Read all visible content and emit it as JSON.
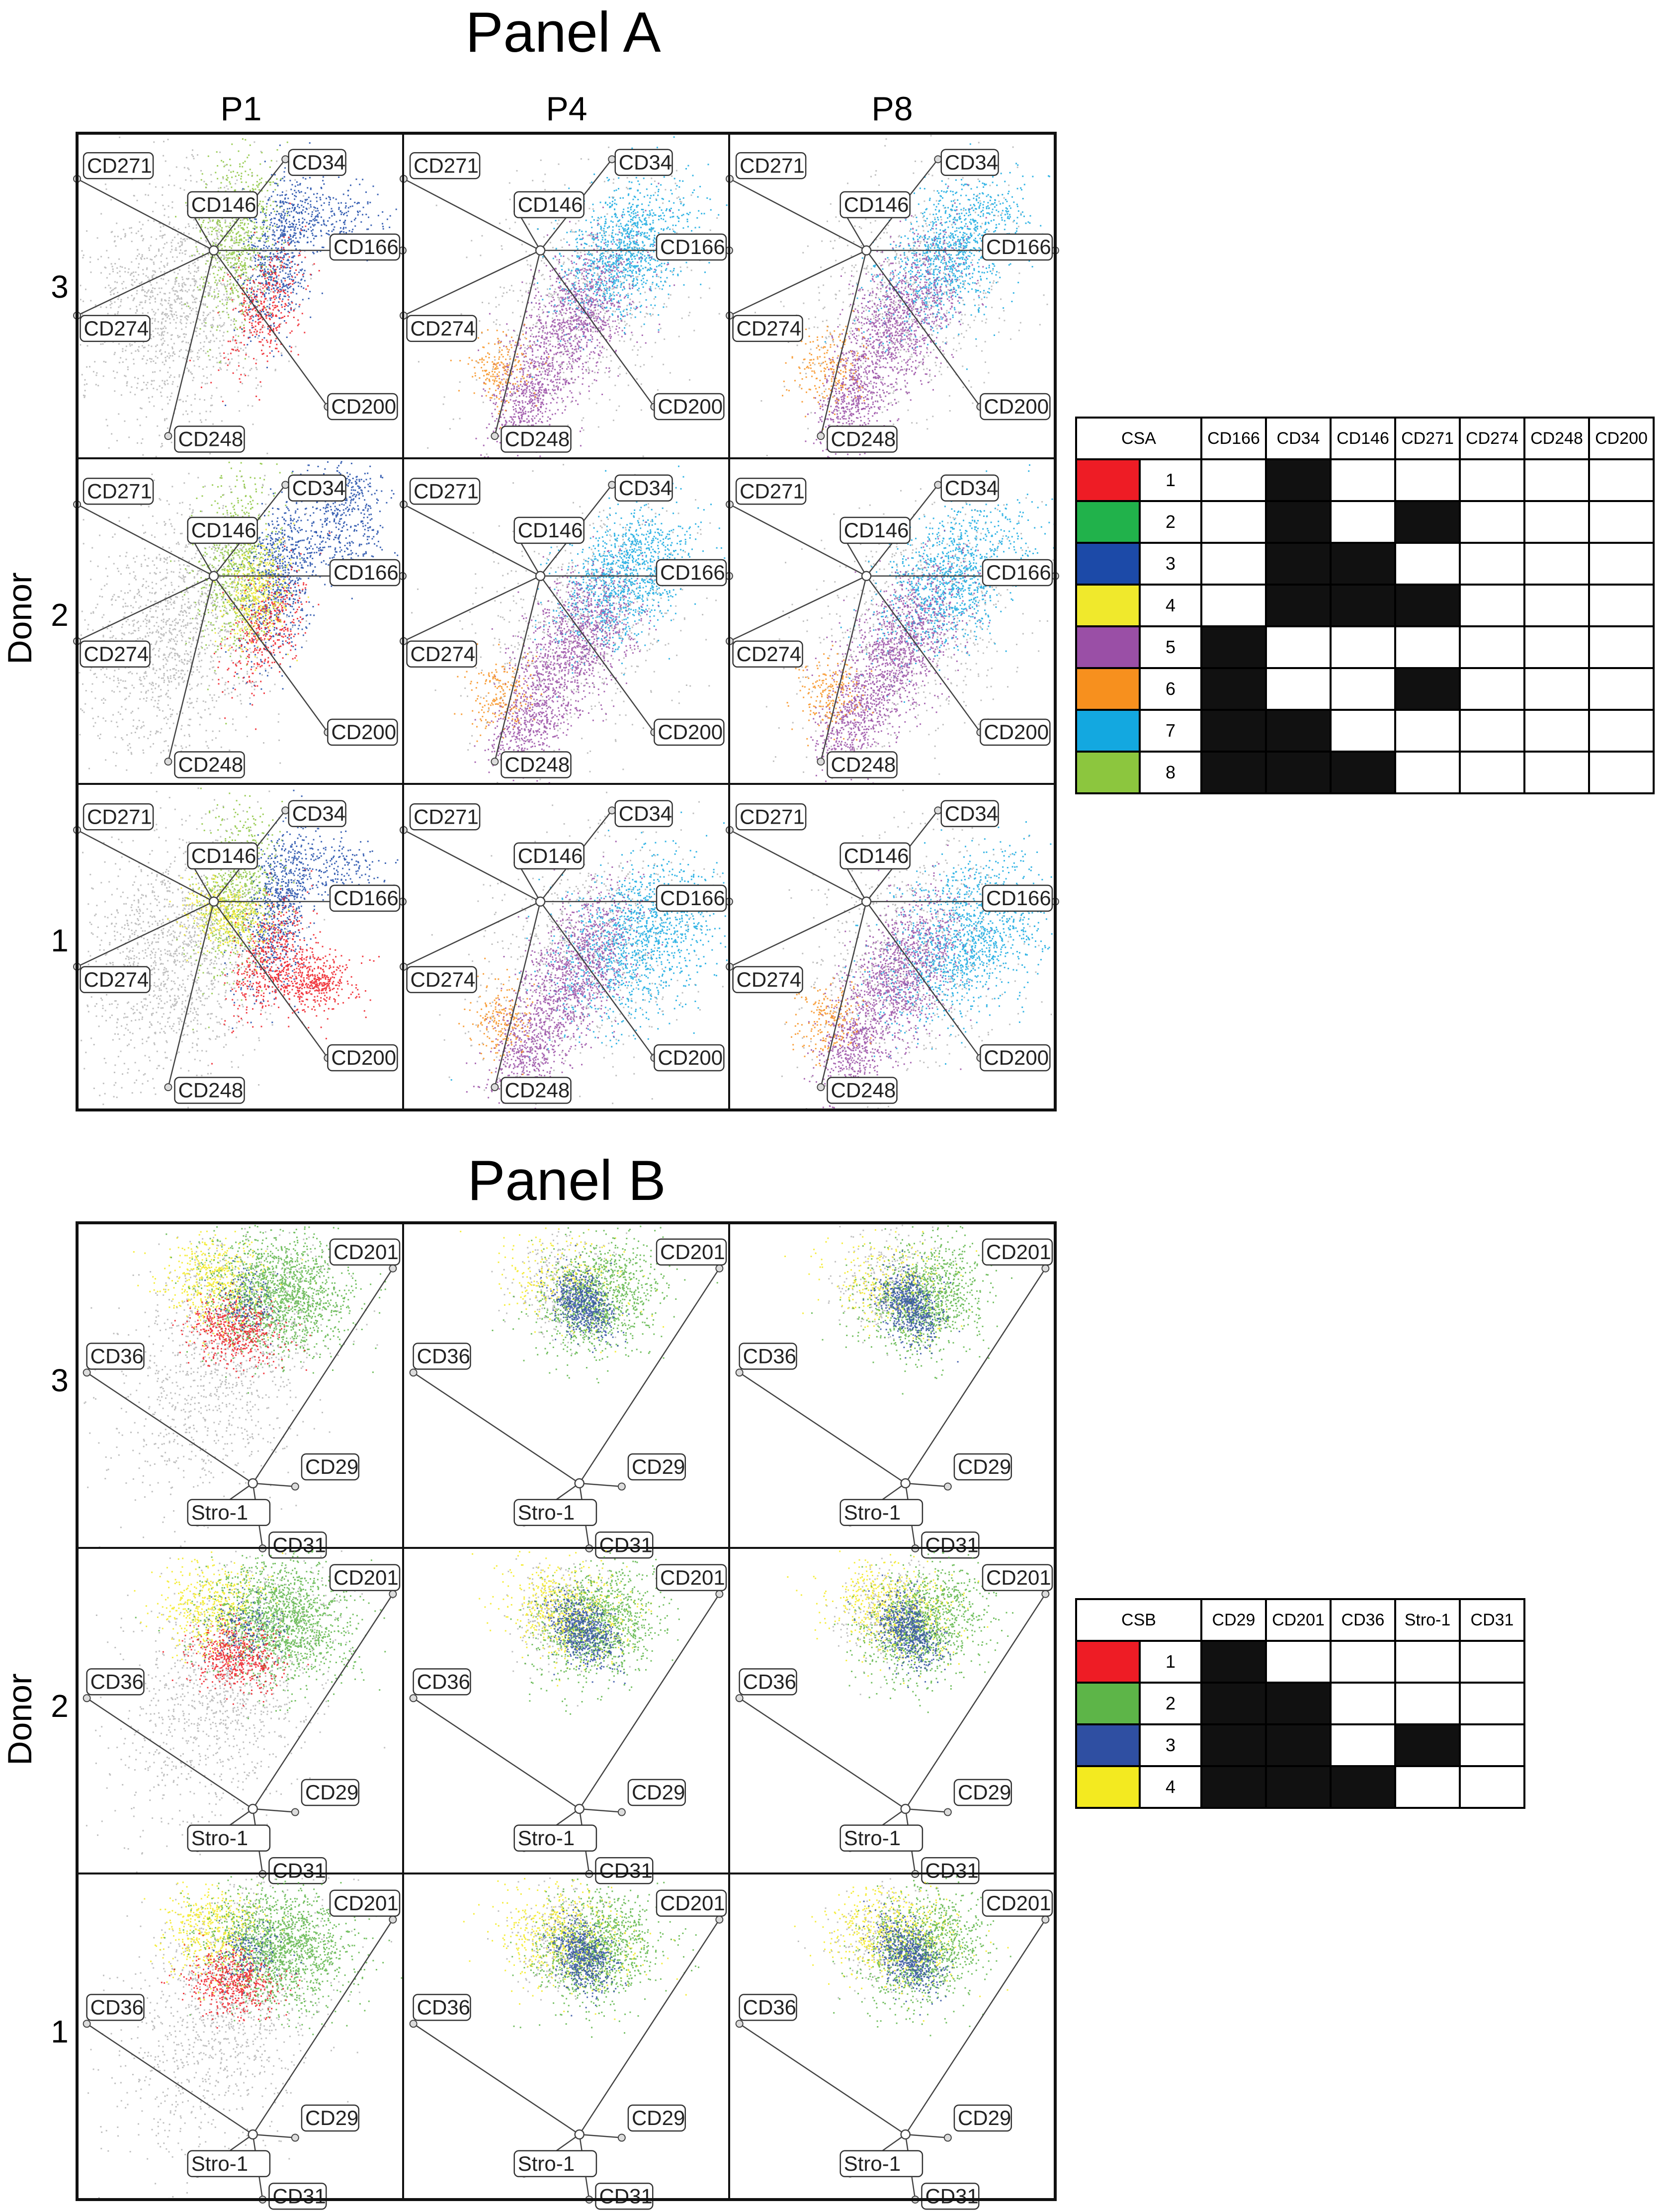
{
  "panelA": {
    "title": "Panel A",
    "columns": [
      "P1",
      "P4",
      "P8"
    ],
    "rows": [
      "3",
      "2",
      "1"
    ],
    "donor_label": "Donor",
    "markers": [
      "CD271",
      "CD34",
      "CD146",
      "CD166",
      "CD274",
      "CD200",
      "CD248"
    ]
  },
  "panelB": {
    "title": "Panel B",
    "rows": [
      "3",
      "2",
      "1"
    ],
    "donor_label": "Donor",
    "markers": [
      "CD201",
      "CD36",
      "CD29",
      "Stro-1",
      "CD31"
    ]
  },
  "legendA": {
    "header": "CSA",
    "columns": [
      "CD166",
      "CD34",
      "CD146",
      "CD271",
      "CD274",
      "CD248",
      "CD200"
    ],
    "rows": [
      {
        "num": "1",
        "color": "#ee1c25",
        "on": [
          false,
          true,
          false,
          false,
          false,
          false,
          false
        ]
      },
      {
        "num": "2",
        "color": "#21b24b",
        "on": [
          false,
          true,
          false,
          true,
          false,
          false,
          false
        ]
      },
      {
        "num": "3",
        "color": "#1c4aa8",
        "on": [
          false,
          true,
          true,
          false,
          false,
          false,
          false
        ]
      },
      {
        "num": "4",
        "color": "#f0e92c",
        "on": [
          false,
          true,
          true,
          true,
          false,
          false,
          false
        ]
      },
      {
        "num": "5",
        "color": "#9a4fa6",
        "on": [
          true,
          false,
          false,
          false,
          false,
          false,
          false
        ]
      },
      {
        "num": "6",
        "color": "#f7901e",
        "on": [
          true,
          false,
          false,
          true,
          false,
          false,
          false
        ]
      },
      {
        "num": "7",
        "color": "#13a8e0",
        "on": [
          true,
          true,
          false,
          false,
          false,
          false,
          false
        ]
      },
      {
        "num": "8",
        "color": "#8cc63e",
        "on": [
          true,
          true,
          true,
          false,
          false,
          false,
          false
        ]
      }
    ]
  },
  "legendB": {
    "header": "CSB",
    "columns": [
      "CD29",
      "CD201",
      "CD36",
      "Stro-1",
      "CD31"
    ],
    "rows": [
      {
        "num": "1",
        "color": "#ee1c25",
        "on": [
          true,
          false,
          false,
          false,
          false
        ]
      },
      {
        "num": "2",
        "color": "#5db548",
        "on": [
          true,
          true,
          false,
          false,
          false
        ]
      },
      {
        "num": "3",
        "color": "#2f4fa2",
        "on": [
          true,
          true,
          false,
          true,
          false
        ]
      },
      {
        "num": "4",
        "color": "#f3ea20",
        "on": [
          true,
          true,
          true,
          false,
          false
        ]
      }
    ]
  }
}
